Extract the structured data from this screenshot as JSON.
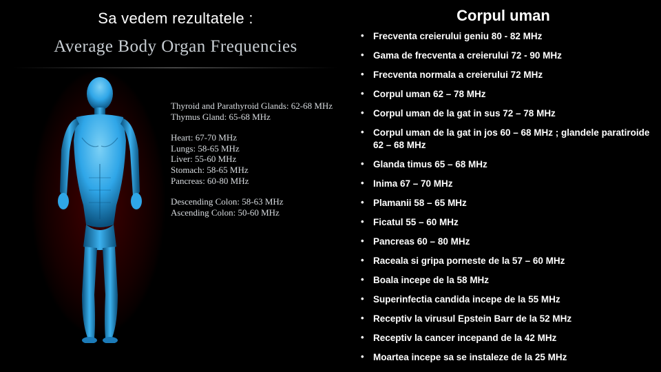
{
  "left": {
    "title": "Sa vedem rezultatele :",
    "panel_title": "Average Body Organ Frequencies",
    "organ_groups": [
      {
        "lines": [
          "Thyroid and Parathyroid Glands: 62-68 MHz",
          "Thymus Gland: 65-68 MHz"
        ]
      },
      {
        "lines": [
          "Heart: 67-70 MHz",
          "Lungs: 58-65 MHz",
          "Liver: 55-60 MHz",
          "Stomach: 58-65 MHz",
          "Pancreas: 60-80 MHz"
        ]
      },
      {
        "lines": [
          "Descending Colon: 58-63 MHz",
          "Ascending Colon: 50-60 MHz"
        ]
      }
    ],
    "body_colors": {
      "skin": "#2fa6e8",
      "skin_light": "#6fc5f1",
      "skin_dark": "#0d5f93",
      "glow": "#7a0d0d"
    }
  },
  "right": {
    "title": "Corpul uman",
    "items": [
      "Frecventa creierului geniu   80 - 82 MHz",
      "Gama de frecventa a creierului   72 - 90 MHz",
      "Frecventa normala a creierului   72 MHz",
      "Corpul uman  62 – 78 MHz",
      "Corpul uman de la gat in sus  72 – 78 MHz",
      "Corpul uman de la gat in jos  60 – 68 MHz ; glandele paratiroide 62 – 68 MHz",
      "Glanda timus  65 – 68 MHz",
      "Inima  67 – 70 MHz",
      "Plamanii  58 – 65 MHz",
      "Ficatul  55 – 60 MHz",
      "Pancreas  60 – 80 MHz",
      "Raceala si gripa porneste de la 57 – 60 MHz",
      "Boala incepe de la 58 MHz",
      "Superinfectia candida incepe de la 55 MHz",
      "Receptiv la virusul Epstein Barr  de la 52 MHz",
      "Receptiv la cancer incepand de la  42 MHz",
      "Moartea incepe sa se instaleze de la 25 MHz"
    ]
  }
}
